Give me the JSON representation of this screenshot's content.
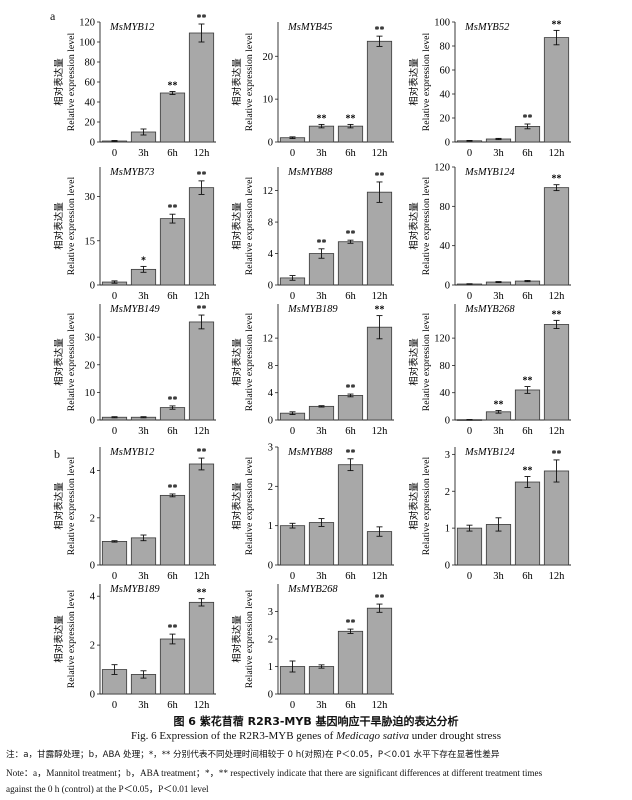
{
  "panels": [
    {
      "label": "a"
    },
    {
      "label": "b"
    }
  ],
  "y_axis_label_cn": "相对表达量",
  "y_axis_label_en": "Relative expression level",
  "caption": {
    "cn": "图 6   紫花苜蓿 R2R3-MYB 基因响应干旱胁迫的表达分析",
    "en": "Fig. 6    Expression of the R2R3-MYB genes of Medicago sativa  under drought stress",
    "note_cn": "注：a，甘露醇处理；b，ABA 处理；*，** 分别代表不同处理时间相较于 0 h(对照)在 P＜0.05，P＜0.01 水平下存在显著性差异",
    "note_en_1": "Note：a，Mannitol treatment；b，ABA treatment；*，**  respectively indicate that there are significant differences at different treatment times",
    "note_en_2": "against the 0 h (control) at the P＜0.05，P＜0.01 level"
  },
  "chart_data": [
    {
      "panel": "a",
      "type": "bar",
      "title": "MsMYB12",
      "categories": [
        "0",
        "3h",
        "6h",
        "12h"
      ],
      "values": [
        1,
        10,
        49,
        109
      ],
      "errors": [
        0.5,
        3,
        1.5,
        9
      ],
      "sig": [
        "",
        "",
        "**",
        "**"
      ],
      "ylim": [
        0,
        120
      ],
      "yticks": [
        0,
        20,
        40,
        60,
        80,
        100,
        120
      ],
      "ylabel": "相对表达量 Relative expression level"
    },
    {
      "panel": "a",
      "type": "bar",
      "title": "MsMYB45",
      "categories": [
        "0",
        "3h",
        "6h",
        "12h"
      ],
      "values": [
        1,
        3.7,
        3.7,
        23.5
      ],
      "errors": [
        0.2,
        0.4,
        0.4,
        1.2
      ],
      "sig": [
        "",
        "**",
        "**",
        "**"
      ],
      "ylim": [
        0,
        28
      ],
      "yticks": [
        0,
        10,
        20
      ],
      "ylabel": "相对表达量 Relative expression level"
    },
    {
      "panel": "a",
      "type": "bar",
      "title": "MsMYB52",
      "categories": [
        "0",
        "3h",
        "6h",
        "12h"
      ],
      "values": [
        1,
        2.5,
        13,
        87
      ],
      "errors": [
        0.3,
        0.5,
        2,
        6
      ],
      "sig": [
        "",
        "",
        "**",
        "**"
      ],
      "ylim": [
        0,
        100
      ],
      "yticks": [
        0,
        20,
        40,
        60,
        80,
        100
      ],
      "ylabel": "相对表达量 Relative expression level"
    },
    {
      "panel": "a",
      "type": "bar",
      "title": "MsMYB73",
      "categories": [
        "0",
        "3h",
        "6h",
        "12h"
      ],
      "values": [
        1,
        5.3,
        22.5,
        33
      ],
      "errors": [
        0.4,
        1,
        1.5,
        2.3
      ],
      "sig": [
        "",
        "*",
        "**",
        "**"
      ],
      "ylim": [
        0,
        40
      ],
      "yticks": [
        0,
        15,
        30
      ],
      "ylabel": "相对表达量 Relative expression level"
    },
    {
      "panel": "a",
      "type": "bar",
      "title": "MsMYB88",
      "categories": [
        "0",
        "3h",
        "6h",
        "12h"
      ],
      "values": [
        0.9,
        4.0,
        5.5,
        11.8
      ],
      "errors": [
        0.3,
        0.6,
        0.2,
        1.3
      ],
      "sig": [
        "",
        "**",
        "**",
        "**"
      ],
      "ylim": [
        0,
        15
      ],
      "yticks": [
        0,
        4,
        8,
        12
      ],
      "ylabel": "相对表达量 Relative expression level"
    },
    {
      "panel": "a",
      "type": "bar",
      "title": "MsMYB124",
      "categories": [
        "0",
        "3h",
        "6h",
        "12h"
      ],
      "values": [
        1,
        3,
        4,
        99
      ],
      "errors": [
        0.3,
        0.5,
        0.6,
        3
      ],
      "sig": [
        "",
        "",
        "",
        "**"
      ],
      "ylim": [
        0,
        120
      ],
      "yticks": [
        0,
        40,
        80,
        120
      ],
      "ylabel": "相对表达量 Relative expression level"
    },
    {
      "panel": "a",
      "type": "bar",
      "title": "MsMYB149",
      "categories": [
        "0",
        "3h",
        "6h",
        "12h"
      ],
      "values": [
        1,
        1,
        4.5,
        35.5
      ],
      "errors": [
        0.2,
        0.2,
        0.6,
        2.5
      ],
      "sig": [
        "",
        "",
        "**",
        "**"
      ],
      "ylim": [
        0,
        42
      ],
      "yticks": [
        0,
        10,
        20,
        30
      ],
      "ylabel": "相对表达量 Relative expression level"
    },
    {
      "panel": "a",
      "type": "bar",
      "title": "MsMYB189",
      "categories": [
        "0",
        "3h",
        "6h",
        "12h"
      ],
      "values": [
        1,
        2,
        3.6,
        13.6
      ],
      "errors": [
        0.2,
        0.1,
        0.2,
        1.7
      ],
      "sig": [
        "",
        "",
        "**",
        "**"
      ],
      "ylim": [
        0,
        17
      ],
      "yticks": [
        0,
        4,
        8,
        12
      ],
      "ylabel": "相对表达量 Relative expression level"
    },
    {
      "panel": "a",
      "type": "bar",
      "title": "MsMYB268",
      "categories": [
        "0",
        "3h",
        "6h",
        "12h"
      ],
      "values": [
        0.5,
        12,
        44,
        140
      ],
      "errors": [
        0.2,
        2,
        5,
        6
      ],
      "sig": [
        "",
        "**",
        "**",
        "**"
      ],
      "ylim": [
        0,
        170
      ],
      "yticks": [
        0,
        40,
        80,
        120
      ],
      "ylabel": "相对表达量 Relative expression level"
    },
    {
      "panel": "b",
      "type": "bar",
      "title": "MsMYB12",
      "categories": [
        "0",
        "3h",
        "6h",
        "12h"
      ],
      "values": [
        1,
        1.15,
        2.95,
        4.28
      ],
      "errors": [
        0.03,
        0.12,
        0.06,
        0.25
      ],
      "sig": [
        "",
        "",
        "**",
        "**"
      ],
      "ylim": [
        0,
        5
      ],
      "yticks": [
        0,
        2,
        4
      ],
      "ylabel": "相对表达量 Relative expression level"
    },
    {
      "panel": "b",
      "type": "bar",
      "title": "MsMYB88",
      "categories": [
        "0",
        "3h",
        "6h",
        "12h"
      ],
      "values": [
        1,
        1.08,
        2.55,
        0.85
      ],
      "errors": [
        0.06,
        0.1,
        0.15,
        0.12
      ],
      "sig": [
        "",
        "",
        "**",
        ""
      ],
      "ylim": [
        0,
        3
      ],
      "yticks": [
        0,
        1,
        2,
        3
      ],
      "ylabel": "相对表达量 Relative expression level"
    },
    {
      "panel": "b",
      "type": "bar",
      "title": "MsMYB124",
      "categories": [
        "0",
        "3h",
        "6h",
        "12h"
      ],
      "values": [
        1,
        1.1,
        2.25,
        2.55
      ],
      "errors": [
        0.08,
        0.18,
        0.15,
        0.3
      ],
      "sig": [
        "",
        "",
        "**",
        "**"
      ],
      "ylim": [
        0,
        3.2
      ],
      "yticks": [
        0,
        1,
        2,
        3
      ],
      "ylabel": "相对表达量 Relative expression level"
    },
    {
      "panel": "b",
      "type": "bar",
      "title": "MsMYB189",
      "categories": [
        "0",
        "3h",
        "6h",
        "12h"
      ],
      "values": [
        1,
        0.8,
        2.25,
        3.75
      ],
      "errors": [
        0.2,
        0.15,
        0.2,
        0.15
      ],
      "sig": [
        "",
        "",
        "**",
        "**"
      ],
      "ylim": [
        0,
        4.5
      ],
      "yticks": [
        0,
        2,
        4
      ],
      "ylabel": "相对表达量 Relative expression level"
    },
    {
      "panel": "b",
      "type": "bar",
      "title": "MsMYB268",
      "categories": [
        "0",
        "3h",
        "6h",
        "12h"
      ],
      "values": [
        1,
        1,
        2.28,
        3.12
      ],
      "errors": [
        0.2,
        0.06,
        0.08,
        0.15
      ],
      "sig": [
        "",
        "",
        "**",
        "**"
      ],
      "ylim": [
        0,
        4
      ],
      "yticks": [
        0,
        1,
        2,
        3
      ],
      "ylabel": "相对表达量 Relative expression level"
    }
  ]
}
